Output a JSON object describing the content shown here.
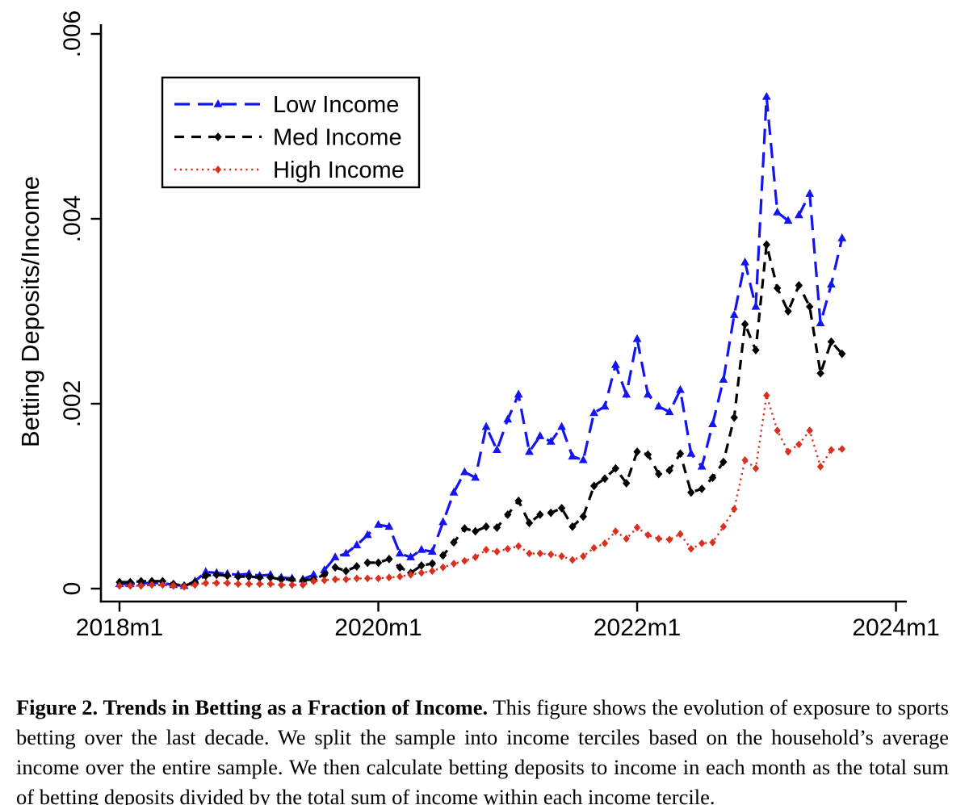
{
  "figure": {
    "caption_label": "Figure 2.",
    "caption_title": "Trends in Betting as a Fraction of Income.",
    "caption_body": "This figure shows the evolution of exposure to sports betting over the last decade. We split the sample into income terciles based on the household’s average income over the entire sample. We then calculate betting deposits to income in each month as the total sum of betting deposits divided by the total sum of income within each income tercile."
  },
  "chart_data": {
    "type": "line",
    "title": "",
    "xlabel": "",
    "ylabel": "Betting Deposits/Income",
    "ylim": [
      0,
      0.006
    ],
    "grid": false,
    "legend_position": "top-left",
    "y_ticks": [
      {
        "value": 0.0,
        "label": "0"
      },
      {
        "value": 0.002,
        "label": ".002"
      },
      {
        "value": 0.004,
        "label": ".004"
      },
      {
        "value": 0.006,
        "label": ".006"
      }
    ],
    "x_ticks": [
      {
        "month_index": 0,
        "label": "2018m1"
      },
      {
        "month_index": 24,
        "label": "2020m1"
      },
      {
        "month_index": 48,
        "label": "2022m1"
      },
      {
        "month_index": 72,
        "label": "2024m1"
      }
    ],
    "x": [
      "2018m1",
      "2018m2",
      "2018m3",
      "2018m4",
      "2018m5",
      "2018m6",
      "2018m7",
      "2018m8",
      "2018m9",
      "2018m10",
      "2018m11",
      "2018m12",
      "2019m1",
      "2019m2",
      "2019m3",
      "2019m4",
      "2019m5",
      "2019m6",
      "2019m7",
      "2019m8",
      "2019m9",
      "2019m10",
      "2019m11",
      "2019m12",
      "2020m1",
      "2020m2",
      "2020m3",
      "2020m4",
      "2020m5",
      "2020m6",
      "2020m7",
      "2020m8",
      "2020m9",
      "2020m10",
      "2020m11",
      "2020m12",
      "2021m1",
      "2021m2",
      "2021m3",
      "2021m4",
      "2021m5",
      "2021m6",
      "2021m7",
      "2021m8",
      "2021m9",
      "2021m10",
      "2021m11",
      "2021m12",
      "2022m1",
      "2022m2",
      "2022m3",
      "2022m4",
      "2022m5",
      "2022m6",
      "2022m7",
      "2022m8",
      "2022m9",
      "2022m10",
      "2022m11",
      "2022m12",
      "2023m1",
      "2023m2",
      "2023m3",
      "2023m4",
      "2023m5",
      "2023m6",
      "2023m7",
      "2023m8"
    ],
    "series": [
      {
        "name": "Low Income",
        "color": "#1414f0",
        "dash": "long-dash",
        "marker": "triangle",
        "values": [
          5e-05,
          5e-05,
          6e-05,
          6e-05,
          6e-05,
          4e-05,
          3e-05,
          8e-05,
          0.00018,
          0.00017,
          0.00016,
          0.00015,
          0.00016,
          0.00014,
          0.00015,
          0.00012,
          0.00011,
          0.0001,
          0.00015,
          0.0002,
          0.00034,
          0.00038,
          0.00047,
          0.00058,
          0.00069,
          0.00067,
          0.00038,
          0.00034,
          0.00042,
          0.0004,
          0.00072,
          0.00104,
          0.00126,
          0.0012,
          0.00175,
          0.0015,
          0.00183,
          0.0021,
          0.00148,
          0.00165,
          0.00159,
          0.00175,
          0.00143,
          0.00139,
          0.0019,
          0.00197,
          0.00242,
          0.0021,
          0.0027,
          0.0021,
          0.00197,
          0.00191,
          0.00215,
          0.00146,
          0.00132,
          0.00178,
          0.00226,
          0.00296,
          0.00353,
          0.00305,
          0.00532,
          0.00407,
          0.00398,
          0.00404,
          0.00427,
          0.00287,
          0.00329,
          0.00379
        ]
      },
      {
        "name": "Med Income",
        "color": "#000000",
        "dash": "dash",
        "marker": "diamond",
        "values": [
          7e-05,
          7e-05,
          8e-05,
          8e-05,
          8e-05,
          5e-05,
          3e-05,
          7e-05,
          0.00014,
          0.00015,
          0.00014,
          0.00013,
          0.00013,
          0.00012,
          0.00012,
          0.0001,
          0.0001,
          9e-05,
          0.0001,
          0.00015,
          0.00023,
          0.00019,
          0.00024,
          0.00028,
          0.00028,
          0.00032,
          0.00023,
          0.00017,
          0.00025,
          0.00027,
          0.00036,
          0.0005,
          0.00065,
          0.00062,
          0.00067,
          0.00066,
          0.0008,
          0.00095,
          0.00071,
          0.0008,
          0.00082,
          0.00087,
          0.00067,
          0.00078,
          0.00111,
          0.00119,
          0.0013,
          0.00114,
          0.00148,
          0.00145,
          0.00124,
          0.00128,
          0.00146,
          0.00104,
          0.00108,
          0.0012,
          0.00137,
          0.00185,
          0.00286,
          0.00258,
          0.00372,
          0.00325,
          0.003,
          0.00328,
          0.00305,
          0.00233,
          0.00267,
          0.00254
        ]
      },
      {
        "name": "High Income",
        "color": "#d9301f",
        "dash": "dot",
        "marker": "diamond-small",
        "values": [
          3e-05,
          3e-05,
          3e-05,
          4e-05,
          4e-05,
          3e-05,
          2e-05,
          4e-05,
          6e-05,
          6e-05,
          6e-05,
          5e-05,
          5e-05,
          5e-05,
          5e-05,
          4e-05,
          4e-05,
          4e-05,
          8e-05,
          9e-05,
          0.0001,
          0.0001,
          0.00011,
          0.00011,
          0.00011,
          0.00012,
          0.00013,
          0.00015,
          0.00017,
          0.00019,
          0.00023,
          0.00027,
          0.0003,
          0.00034,
          0.00042,
          0.0004,
          0.00043,
          0.00046,
          0.00038,
          0.00038,
          0.00037,
          0.00035,
          0.00031,
          0.00035,
          0.00044,
          0.00049,
          0.00062,
          0.00054,
          0.00066,
          0.00058,
          0.00054,
          0.00053,
          0.00059,
          0.00043,
          0.00049,
          0.0005,
          0.00067,
          0.00086,
          0.00139,
          0.0013,
          0.00209,
          0.00171,
          0.00148,
          0.00156,
          0.00171,
          0.00132,
          0.0015,
          0.00151
        ]
      }
    ]
  }
}
